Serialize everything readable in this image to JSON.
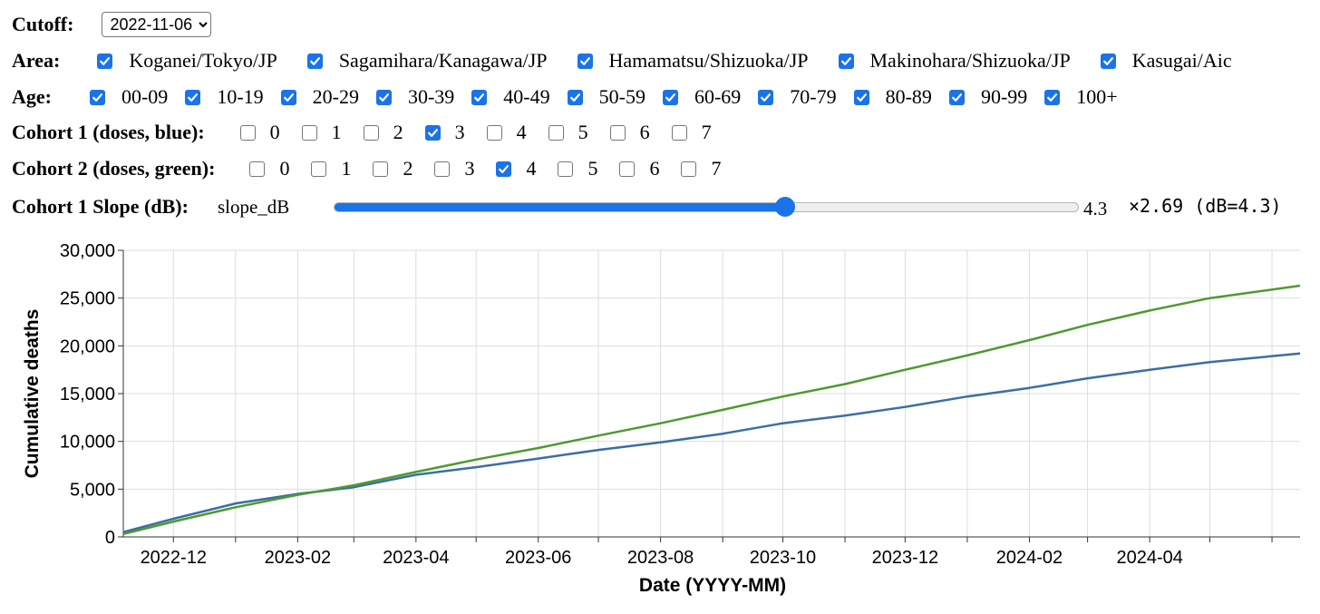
{
  "controls": {
    "cutoff": {
      "label": "Cutoff:",
      "value": "2022-11-06"
    },
    "area": {
      "label": "Area:",
      "items": [
        {
          "label": "Koganei/Tokyo/JP",
          "checked": true
        },
        {
          "label": "Sagamihara/Kanagawa/JP",
          "checked": true
        },
        {
          "label": "Hamamatsu/Shizuoka/JP",
          "checked": true
        },
        {
          "label": "Makinohara/Shizuoka/JP",
          "checked": true
        },
        {
          "label": "Kasugai/Aic",
          "checked": true
        }
      ]
    },
    "age": {
      "label": "Age:",
      "items": [
        {
          "label": "00-09",
          "checked": true
        },
        {
          "label": "10-19",
          "checked": true
        },
        {
          "label": "20-29",
          "checked": true
        },
        {
          "label": "30-39",
          "checked": true
        },
        {
          "label": "40-49",
          "checked": true
        },
        {
          "label": "50-59",
          "checked": true
        },
        {
          "label": "60-69",
          "checked": true
        },
        {
          "label": "70-79",
          "checked": true
        },
        {
          "label": "80-89",
          "checked": true
        },
        {
          "label": "90-99",
          "checked": true
        },
        {
          "label": "100+",
          "checked": true
        }
      ]
    },
    "cohort1": {
      "label": "Cohort 1 (doses, blue):",
      "items": [
        {
          "label": "0",
          "checked": false
        },
        {
          "label": "1",
          "checked": false
        },
        {
          "label": "2",
          "checked": false
        },
        {
          "label": "3",
          "checked": true
        },
        {
          "label": "4",
          "checked": false
        },
        {
          "label": "5",
          "checked": false
        },
        {
          "label": "6",
          "checked": false
        },
        {
          "label": "7",
          "checked": false
        }
      ]
    },
    "cohort2": {
      "label": "Cohort 2 (doses, green):",
      "items": [
        {
          "label": "0",
          "checked": false
        },
        {
          "label": "1",
          "checked": false
        },
        {
          "label": "2",
          "checked": false
        },
        {
          "label": "3",
          "checked": false
        },
        {
          "label": "4",
          "checked": true
        },
        {
          "label": "5",
          "checked": false
        },
        {
          "label": "6",
          "checked": false
        },
        {
          "label": "7",
          "checked": false
        }
      ]
    },
    "slope": {
      "label": "Cohort 1 Slope (dB):",
      "slider_name": "slope_dB",
      "value_text": "4.3",
      "readout": "×2.69 (dB=4.3)",
      "fraction": 0.606
    }
  },
  "colors": {
    "accent": "#1a73e8",
    "series_blue": "#3a6ea5",
    "series_green": "#4e9a2e",
    "grid": "#dddddd"
  },
  "chart_data": {
    "type": "line",
    "xlabel": "Date (YYYY-MM)",
    "ylabel": "Cumulative deaths",
    "ylim": [
      0,
      30000
    ],
    "xlim": [
      "2022-11-06",
      "2024-06-15"
    ],
    "yticks": [
      0,
      5000,
      10000,
      15000,
      20000,
      25000,
      30000
    ],
    "ytick_labels": [
      "0",
      "5,000",
      "10,000",
      "15,000",
      "20,000",
      "25,000",
      "30,000"
    ],
    "xticks": [
      "2022-12",
      "2023-02",
      "2023-04",
      "2023-06",
      "2023-08",
      "2023-10",
      "2023-12",
      "2024-02",
      "2024-04"
    ],
    "grid": true,
    "series": [
      {
        "color": "#3a6ea5",
        "x": [
          "2022-11-06",
          "2022-12-01",
          "2023-01-01",
          "2023-02-01",
          "2023-03-01",
          "2023-04-01",
          "2023-05-01",
          "2023-06-01",
          "2023-07-01",
          "2023-08-01",
          "2023-09-01",
          "2023-10-01",
          "2023-11-01",
          "2023-12-01",
          "2024-01-01",
          "2024-02-01",
          "2024-03-01",
          "2024-04-01",
          "2024-05-01",
          "2024-06-15"
        ],
        "y": [
          500,
          1900,
          3500,
          4500,
          5200,
          6500,
          7300,
          8200,
          9100,
          9900,
          10800,
          11900,
          12700,
          13600,
          14700,
          15600,
          16600,
          17500,
          18300,
          19200
        ]
      },
      {
        "color": "#4e9a2e",
        "x": [
          "2022-11-06",
          "2022-12-01",
          "2023-01-01",
          "2023-02-01",
          "2023-03-01",
          "2023-04-01",
          "2023-05-01",
          "2023-06-01",
          "2023-07-01",
          "2023-08-01",
          "2023-09-01",
          "2023-10-01",
          "2023-11-01",
          "2023-12-01",
          "2024-01-01",
          "2024-02-01",
          "2024-03-01",
          "2024-04-01",
          "2024-05-01",
          "2024-06-15"
        ],
        "y": [
          300,
          1600,
          3100,
          4400,
          5400,
          6800,
          8100,
          9300,
          10600,
          11900,
          13300,
          14700,
          16000,
          17500,
          19000,
          20600,
          22200,
          23700,
          25000,
          26300
        ]
      }
    ]
  }
}
